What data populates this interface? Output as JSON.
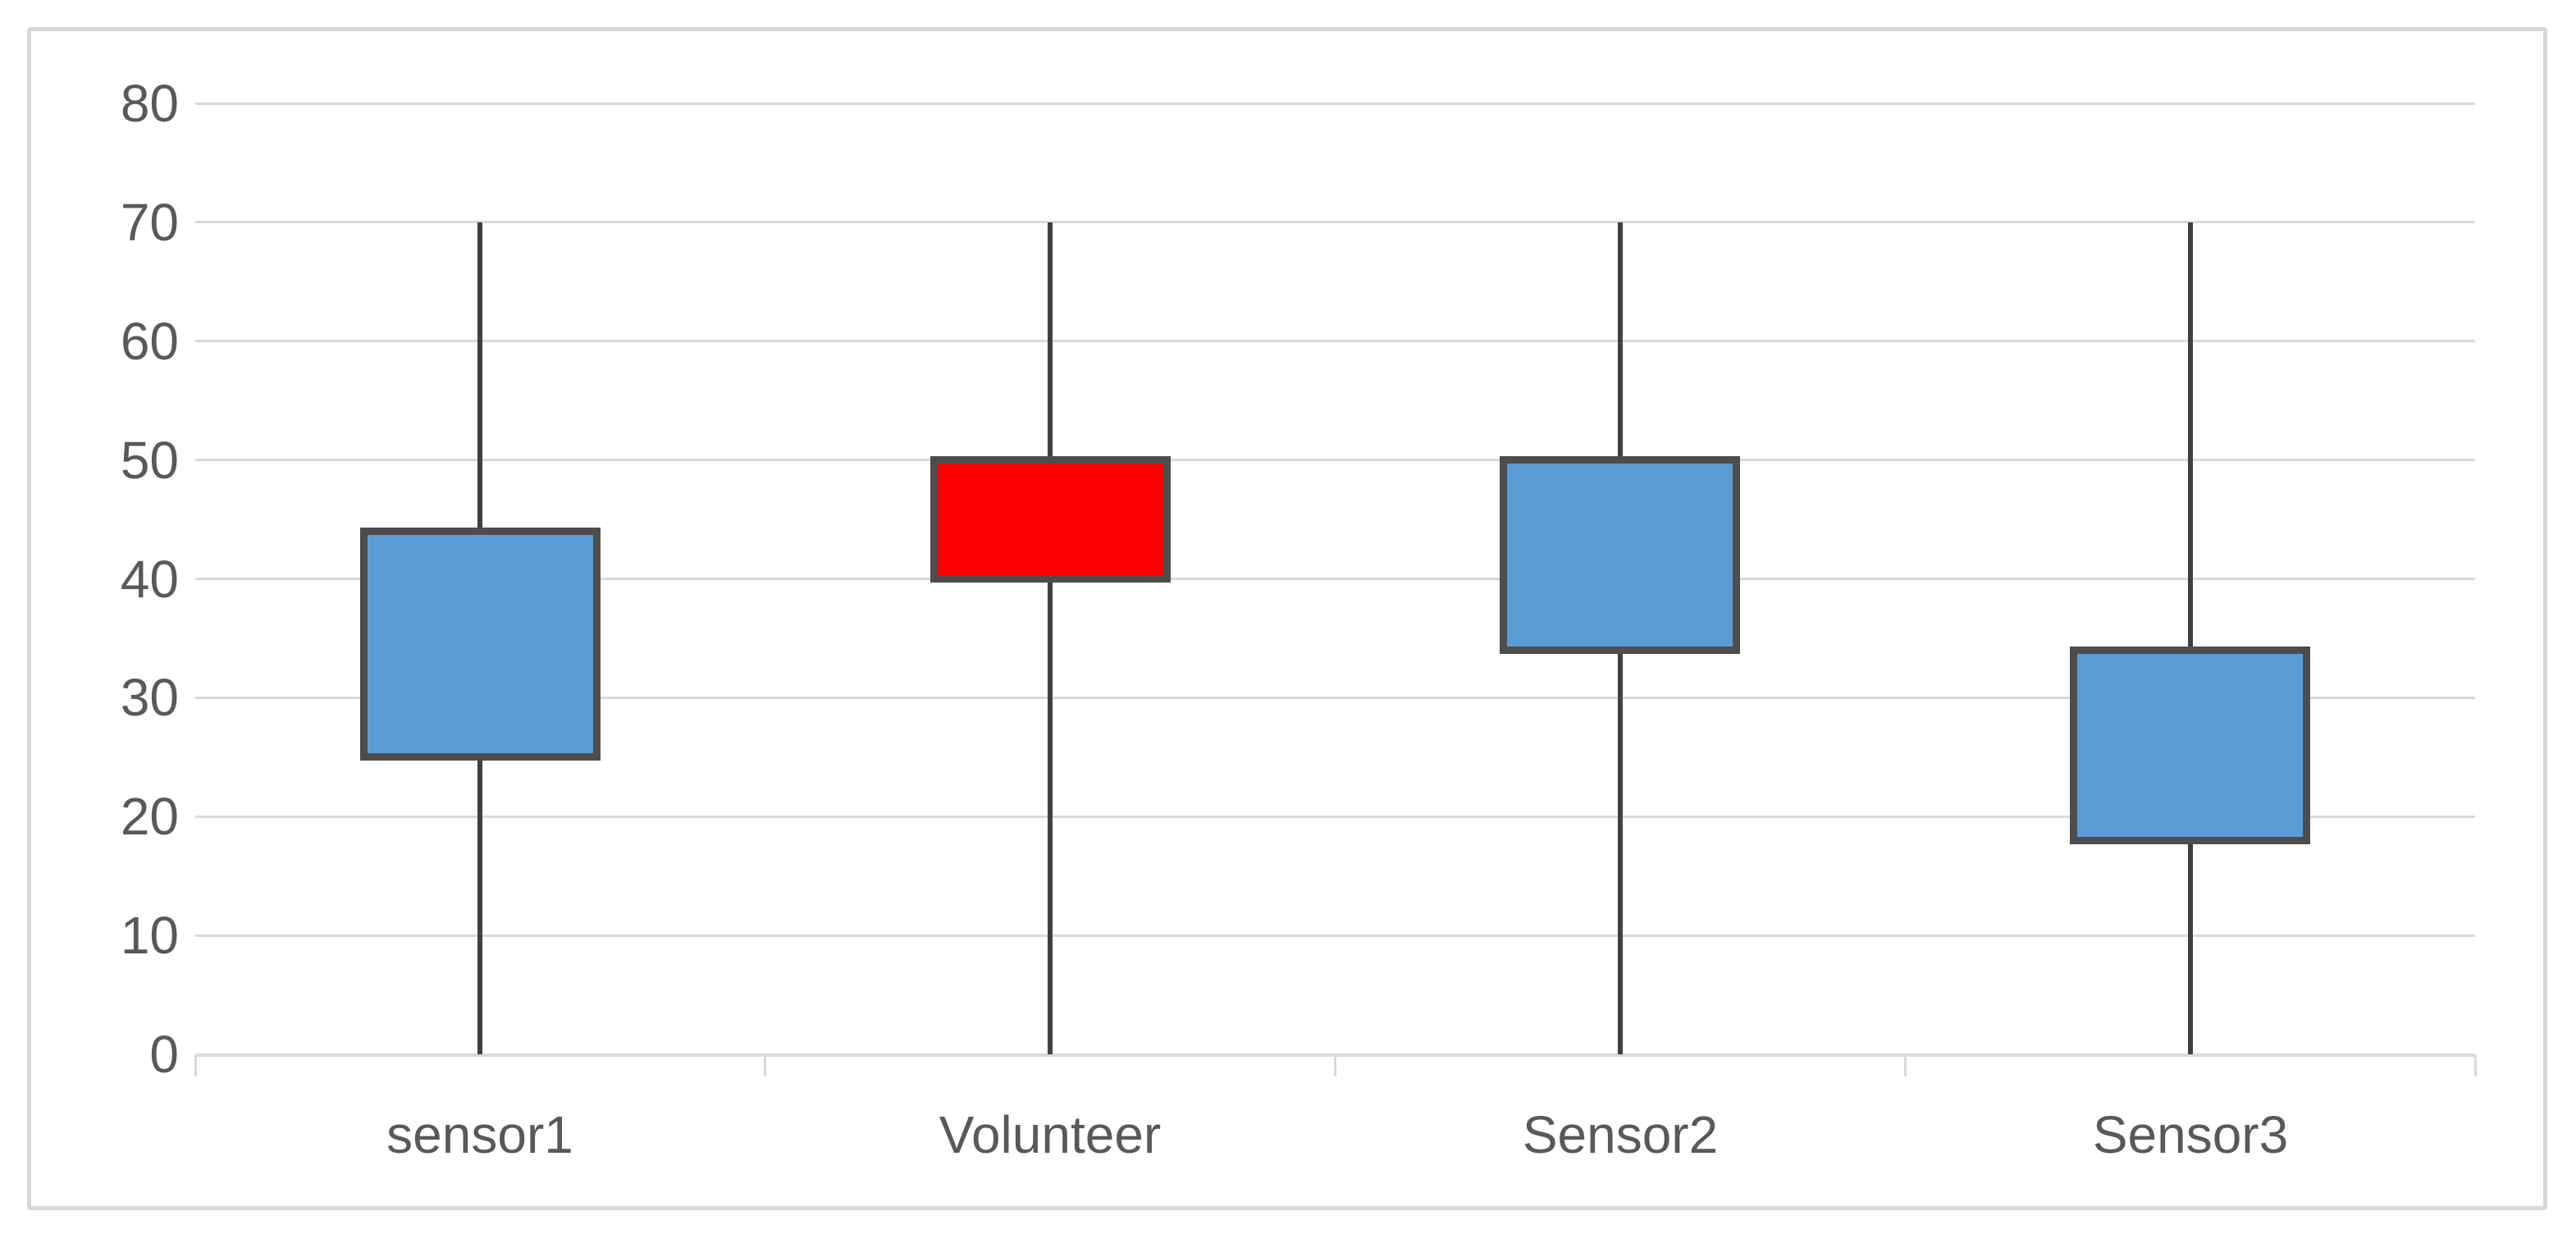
{
  "canvas": {
    "background_color": "#FFFFFF",
    "border_color": "#D8D8D8"
  },
  "chart_data": {
    "type": "box",
    "title": "",
    "categories": [
      "sensor1",
      "Volunteer",
      "Sensor2",
      "Sensor3"
    ],
    "boxes": [
      {
        "category": "sensor1",
        "whisker_low": 0,
        "box_low": 25,
        "box_high": 44,
        "whisker_high": 70,
        "fill": "#5B9BD5"
      },
      {
        "category": "Volunteer",
        "whisker_low": 0,
        "box_low": 40,
        "box_high": 50,
        "whisker_high": 70,
        "fill": "#FF0000"
      },
      {
        "category": "Sensor2",
        "whisker_low": 0,
        "box_low": 34,
        "box_high": 50,
        "whisker_high": 70,
        "fill": "#5B9BD5"
      },
      {
        "category": "Sensor3",
        "whisker_low": 0,
        "box_low": 18,
        "box_high": 34,
        "whisker_high": 70,
        "fill": "#5B9BD5"
      }
    ],
    "y_axis": {
      "min": 0,
      "max": 80,
      "step": 10,
      "tick_labels": [
        "0",
        "10",
        "20",
        "30",
        "40",
        "50",
        "60",
        "70",
        "80"
      ]
    },
    "x_axis": {
      "tick_labels": [
        "sensor1",
        "Volunteer",
        "Sensor2",
        "Sensor3"
      ]
    },
    "ylim": [
      0,
      80
    ],
    "grid": true,
    "legend": false,
    "whiskers_have_caps": false,
    "median_line": false,
    "colors": {
      "gridline": "#D9D9D9",
      "axis_line": "#D9D9D9",
      "tick": "#D9D9D9",
      "label": "#595959",
      "box_border": "#4D4D4D",
      "whisker": "#404040",
      "default_fill": "#5B9BD5",
      "highlight_fill": "#FF0000"
    }
  }
}
